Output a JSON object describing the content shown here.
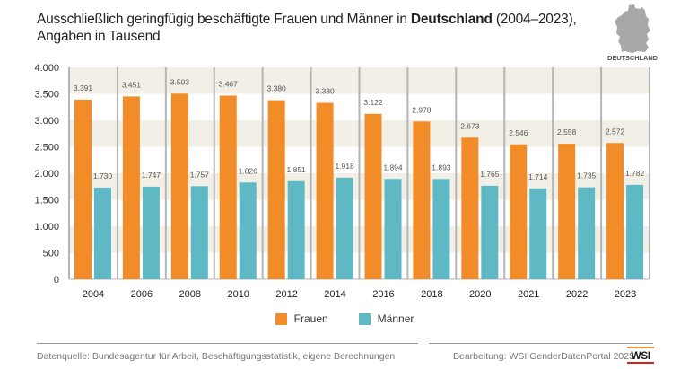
{
  "header": {
    "title_part1": "Ausschließlich geringfügig beschäftigte Frauen und Männer in ",
    "title_bold": "Deutschland",
    "title_part2": " (2004–2023),",
    "subtitle": "Angaben in Tausend",
    "map_label": "DEUTSCHLAND"
  },
  "legend": [
    {
      "label": "Frauen",
      "color": "#f28c28"
    },
    {
      "label": "Männer",
      "color": "#5fb9c4"
    }
  ],
  "footer": {
    "source": "Datenquelle: Bundesagentur für Arbeit, Beschäftigungsstatistik, eigene Berechnungen",
    "credit": "Bearbeitung: WSI GenderDatenPortal 2025",
    "logo": "WSI"
  },
  "colors": {
    "frauen": "#f28c28",
    "maenner": "#5fb9c4",
    "band": "#f1efe6",
    "separator": "#b5b5b5"
  },
  "chart_data": {
    "type": "bar",
    "title": "Ausschließlich geringfügig beschäftigte Frauen und Männer in Deutschland (2004–2023), Angaben in Tausend",
    "xlabel": "",
    "ylabel": "",
    "ylim": [
      0,
      4000
    ],
    "yticks": [
      0,
      500,
      1000,
      1500,
      2000,
      2500,
      3000,
      3500,
      4000
    ],
    "ytick_labels": [
      "0",
      "500",
      "1.000",
      "1.500",
      "2.000",
      "2.500",
      "3.000",
      "3.500",
      "4.000"
    ],
    "categories": [
      "2004",
      "2006",
      "2008",
      "2010",
      "2012",
      "2014",
      "2016",
      "2018",
      "2020",
      "2021",
      "2022",
      "2023"
    ],
    "series": [
      {
        "name": "Frauen",
        "values": [
          3391,
          3451,
          3503,
          3467,
          3380,
          3330,
          3122,
          2978,
          2673,
          2546,
          2558,
          2572
        ],
        "labels": [
          "3.391",
          "3.451",
          "3.503",
          "3.467",
          "3.380",
          "3.330",
          "3.122",
          "2.978",
          "2.673",
          "2.546",
          "2.558",
          "2.572"
        ]
      },
      {
        "name": "Männer",
        "values": [
          1730,
          1747,
          1757,
          1826,
          1851,
          1918,
          1894,
          1893,
          1765,
          1714,
          1735,
          1782
        ],
        "labels": [
          "1.730",
          "1.747",
          "1.757",
          "1.826",
          "1.851",
          "1.918",
          "1.894",
          "1.893",
          "1.765",
          "1.714",
          "1.735",
          "1.782"
        ]
      }
    ],
    "grid": "alternating horizontal bands",
    "legend_position": "bottom-center"
  }
}
